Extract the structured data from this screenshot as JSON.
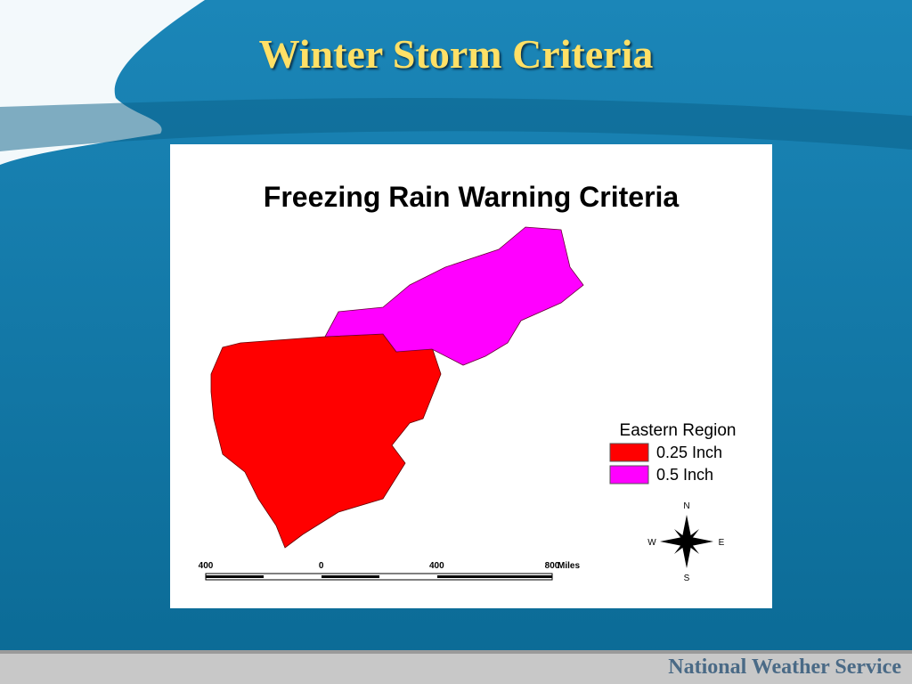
{
  "header": {
    "title": "Winter Storm Criteria"
  },
  "map": {
    "title": "Freezing Rain Warning Criteria",
    "legend": {
      "title": "Eastern Region",
      "items": [
        {
          "label": "0.25 Inch",
          "color": "#ff0000"
        },
        {
          "label": "0.5 Inch",
          "color": "#ff00ff"
        }
      ]
    },
    "scale_bar": {
      "labels": [
        "400",
        "0",
        "400",
        "800"
      ],
      "unit": "Miles"
    },
    "compass": {
      "north": "N",
      "south": "S",
      "east": "E",
      "west": "W"
    }
  },
  "footer": {
    "text": "National Weather Service"
  }
}
